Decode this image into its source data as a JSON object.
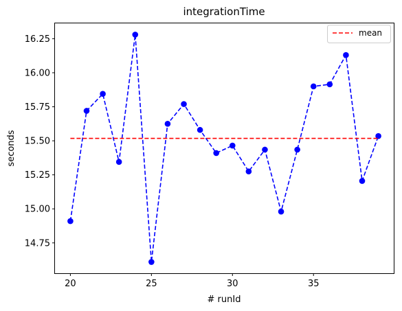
{
  "chart_data": {
    "type": "line",
    "title": "integrationTime",
    "xlabel": "# runId",
    "ylabel": "seconds",
    "xlim": [
      19.05,
      39.95
    ],
    "ylim": [
      14.527,
      16.363
    ],
    "x_ticks": [
      20,
      25,
      30,
      35
    ],
    "x_tick_labels": [
      "20",
      "25",
      "30",
      "35"
    ],
    "y_ticks": [
      14.75,
      15.0,
      15.25,
      15.5,
      15.75,
      16.0,
      16.25
    ],
    "y_tick_labels": [
      "14.75",
      "15.00",
      "15.25",
      "15.50",
      "15.75",
      "16.00",
      "16.25"
    ],
    "grid": false,
    "legend_position": "top-right",
    "series": [
      {
        "kind": "data",
        "color": "#0000ff",
        "line_style": "dashed",
        "marker": "circle",
        "x": [
          20,
          21,
          22,
          23,
          24,
          25,
          26,
          27,
          28,
          29,
          30,
          31,
          32,
          33,
          34,
          35,
          36,
          37,
          38,
          39
        ],
        "y": [
          14.91,
          15.72,
          15.845,
          15.345,
          16.28,
          14.61,
          15.625,
          15.77,
          15.58,
          15.41,
          15.465,
          15.275,
          15.435,
          14.98,
          15.435,
          15.9,
          15.915,
          16.13,
          15.205,
          15.535
        ]
      },
      {
        "kind": "mean",
        "name": "mean",
        "color": "#ff0000",
        "line_style": "dashed",
        "x": [
          20,
          39
        ],
        "y": [
          15.518,
          15.518
        ]
      }
    ]
  }
}
